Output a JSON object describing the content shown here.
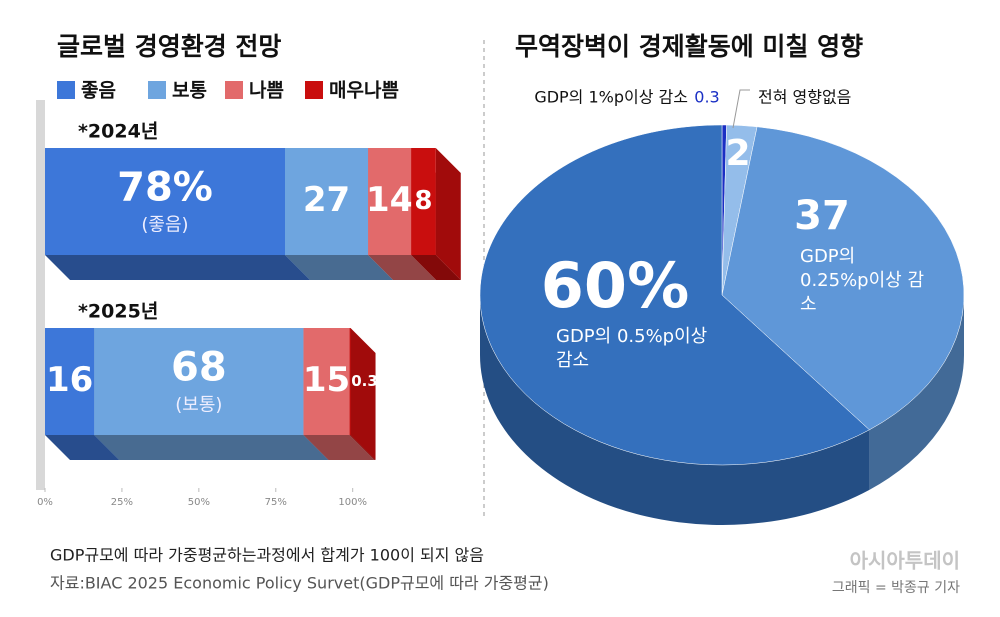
{
  "chart_data": [
    {
      "type": "bar",
      "orientation": "horizontal",
      "stacked": true,
      "title": "글로벌 경영환경 전망",
      "categories": [
        "*2024년",
        "*2025년"
      ],
      "series": [
        {
          "name": "좋음",
          "color": "#3d77d9",
          "values": [
            78,
            16
          ],
          "value_labels": [
            "78%",
            "16"
          ],
          "value_notes": [
            "(좋음)",
            null
          ]
        },
        {
          "name": "보통",
          "color": "#6ea5df",
          "values": [
            27,
            68
          ],
          "value_notes": [
            null,
            "(보통)"
          ]
        },
        {
          "name": "나쁨",
          "color": "#e26a6b",
          "values": [
            14,
            15
          ]
        },
        {
          "name": "매우나쁨",
          "color": "#c90e0e",
          "values": [
            8,
            0.3
          ]
        }
      ],
      "xlim": [
        0,
        130
      ],
      "xticks": [
        {
          "value": 0,
          "label": "0%"
        },
        {
          "value": 25,
          "label": "25%"
        },
        {
          "value": 50,
          "label": "50%"
        },
        {
          "value": 75,
          "label": "75%"
        },
        {
          "value": 100,
          "label": "100%"
        }
      ]
    },
    {
      "type": "pie",
      "title": "무역장벽이 경제활동에 미칠 영향",
      "categories": [
        "GDP의 1%p이상 감소",
        "전혀 영향없음",
        "GDP의 0.25%p이상 감소",
        "GDP의 0.5%p이상 감소"
      ],
      "values": [
        0.3,
        2,
        37,
        60
      ],
      "value_labels": [
        null,
        null,
        null,
        "60%"
      ],
      "colors": [
        "#1a2fc4",
        "#94bdea",
        "#5f97d8",
        "#3470bd"
      ]
    }
  ],
  "note": "GDP규모에 따라 가중평균하는과정에서 합계가 100이 되지 않음",
  "source": "자료:BIAC 2025 Economic Policy Survet(GDP규모에 따라 가중평균)",
  "brand": "아시아투데이",
  "credit": "그래픽 = 박종규 기자"
}
